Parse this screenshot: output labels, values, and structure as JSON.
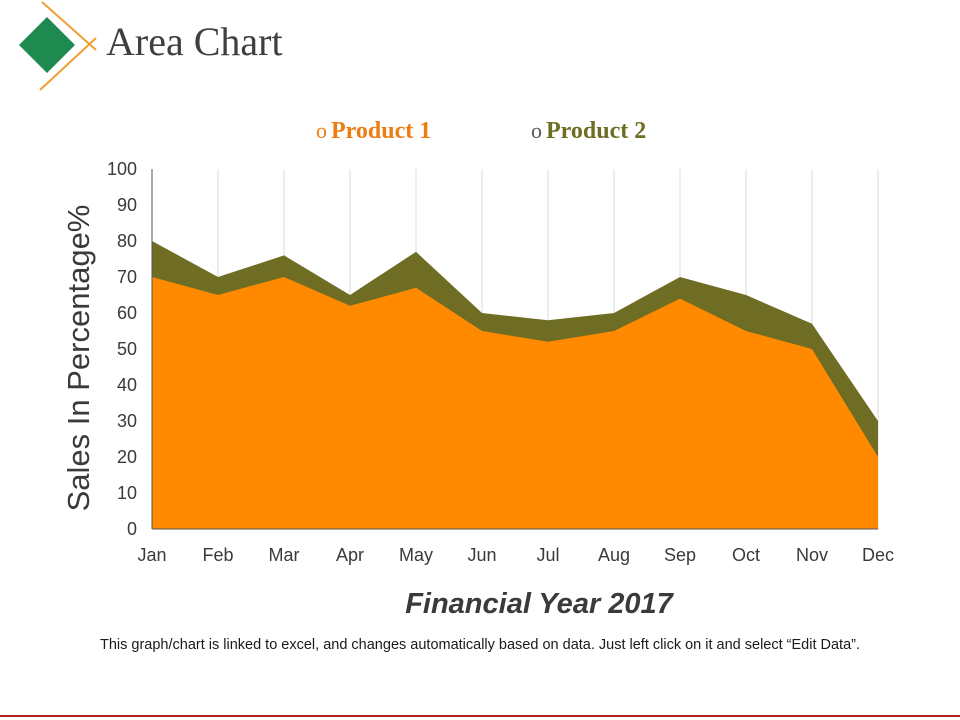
{
  "slide": {
    "title": "Area Chart",
    "footnote": "This graph/chart is linked to excel, and changes automatically based on data. Just left click on it and select “Edit Data”."
  },
  "legend": {
    "marker": "o",
    "product1_label": "Product 1",
    "product2_label": "Product 2"
  },
  "colors": {
    "product1": "#ff8a00",
    "product2": "#6f6d23",
    "logo_diamond": "#1e8a4f",
    "logo_lines": "#f0a030",
    "accent_rule": "#b22222"
  },
  "chart_data": {
    "type": "area",
    "title": "",
    "xlabel": "Financial Year 2017",
    "ylabel": "Sales In Percentage%",
    "ylim": [
      0,
      100
    ],
    "yticks": [
      0,
      10,
      20,
      30,
      40,
      50,
      60,
      70,
      80,
      90,
      100
    ],
    "categories": [
      "Jan",
      "Feb",
      "Mar",
      "Apr",
      "May",
      "Jun",
      "Jul",
      "Aug",
      "Sep",
      "Oct",
      "Nov",
      "Dec"
    ],
    "series": [
      {
        "name": "Product 1",
        "values": [
          70,
          65,
          70,
          62,
          67,
          55,
          52,
          55,
          64,
          55,
          50,
          20
        ]
      },
      {
        "name": "Product 2",
        "values": [
          80,
          70,
          76,
          65,
          77,
          60,
          58,
          60,
          70,
          65,
          57,
          30
        ]
      }
    ],
    "legend_position": "top",
    "grid": "vertical"
  }
}
